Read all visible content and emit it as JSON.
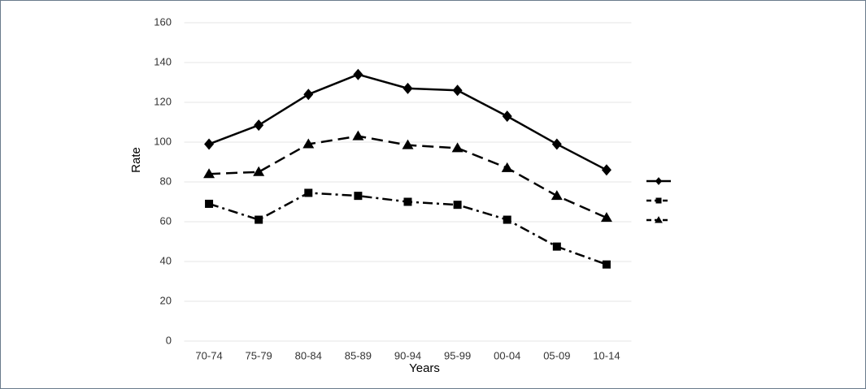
{
  "chart_data": {
    "type": "line",
    "x_label": "Years",
    "y_label": "Rate",
    "categories": [
      "70-74",
      "75-79",
      "80-84",
      "85-89",
      "90-94",
      "95-99",
      "00-04",
      "05-09",
      "10-14"
    ],
    "series": [
      {
        "color": "#000000",
        "marker": "diamond",
        "dash": "solid",
        "values": [
          99,
          108.5,
          124,
          134,
          127,
          126,
          113,
          99,
          86
        ]
      },
      {
        "color": "#000000",
        "marker": "square",
        "dash": "dashdot",
        "values": [
          69,
          61,
          74.5,
          73,
          70,
          68.5,
          61,
          47.5,
          38.5
        ]
      },
      {
        "color": "#000000",
        "marker": "triangle",
        "dash": "dashed",
        "values": [
          84,
          85,
          99,
          103,
          98.5,
          97,
          87,
          73,
          62
        ]
      }
    ],
    "ylim": [
      0,
      160
    ],
    "yticks": [
      0,
      20,
      40,
      60,
      80,
      100,
      120,
      140,
      160
    ],
    "grid": true,
    "legend": "right"
  }
}
